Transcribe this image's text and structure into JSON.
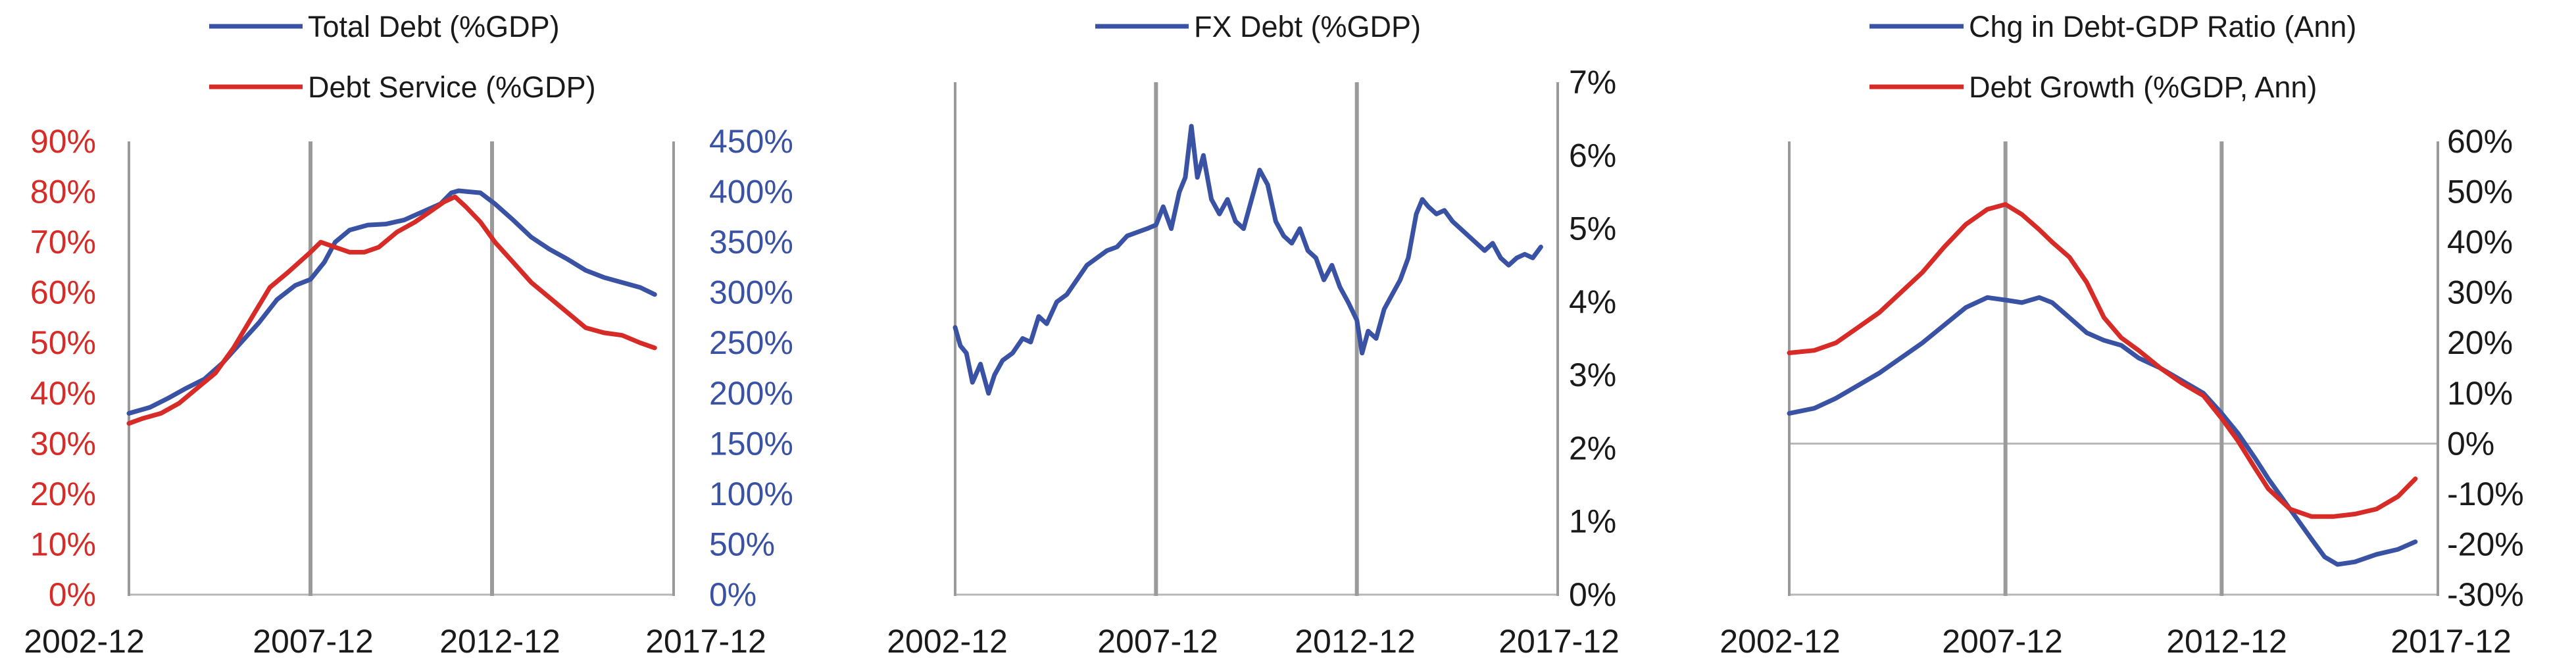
{
  "colors": {
    "blue": "#3a52a3",
    "red": "#d62b27",
    "axis": "#b7b7b7",
    "grid": "#9a9a9a",
    "text": "#1a1a1a"
  },
  "chart_data": [
    {
      "type": "line",
      "legend": [
        "Total Debt (%GDP)",
        "Debt Service (%GDP)"
      ],
      "legend_placement": "top",
      "x_ticks": [
        "2002-12",
        "2007-12",
        "2012-12",
        "2017-12"
      ],
      "xlim": [
        2002.92,
        2017.92
      ],
      "left_axis": {
        "ylim": [
          0,
          0.9
        ],
        "ticks": [
          "0%",
          "10%",
          "20%",
          "30%",
          "40%",
          "50%",
          "60%",
          "70%",
          "80%",
          "90%"
        ],
        "color": "#d62b27"
      },
      "right_axis": {
        "ylim": [
          0,
          4.5
        ],
        "ticks": [
          "0%",
          "50%",
          "100%",
          "150%",
          "200%",
          "250%",
          "300%",
          "350%",
          "400%",
          "450%"
        ],
        "color": "#3a52a3"
      },
      "vlines": [
        2002.92,
        2007.92,
        2012.92,
        2017.92
      ],
      "series": [
        {
          "name": "Total Debt (%GDP)",
          "axis": "right",
          "color": "#3a52a3",
          "points": [
            [
              2002.92,
              1.8
            ],
            [
              2003.5,
              1.86
            ],
            [
              2004,
              1.95
            ],
            [
              2004.5,
              2.05
            ],
            [
              2005,
              2.14
            ],
            [
              2005.5,
              2.3
            ],
            [
              2006,
              2.5
            ],
            [
              2006.5,
              2.7
            ],
            [
              2007,
              2.93
            ],
            [
              2007.5,
              3.07
            ],
            [
              2007.92,
              3.13
            ],
            [
              2008.3,
              3.3
            ],
            [
              2008.6,
              3.5
            ],
            [
              2009,
              3.62
            ],
            [
              2009.5,
              3.67
            ],
            [
              2010,
              3.68
            ],
            [
              2010.5,
              3.72
            ],
            [
              2011,
              3.8
            ],
            [
              2011.5,
              3.88
            ],
            [
              2011.8,
              3.99
            ],
            [
              2012,
              4.01
            ],
            [
              2012.3,
              4.0
            ],
            [
              2012.6,
              3.99
            ],
            [
              2013,
              3.88
            ],
            [
              2013.5,
              3.72
            ],
            [
              2014,
              3.55
            ],
            [
              2014.5,
              3.43
            ],
            [
              2015,
              3.33
            ],
            [
              2015.5,
              3.22
            ],
            [
              2016,
              3.15
            ],
            [
              2016.5,
              3.1
            ],
            [
              2017,
              3.05
            ],
            [
              2017.4,
              2.98
            ]
          ]
        },
        {
          "name": "Debt Service (%GDP)",
          "axis": "left",
          "color": "#d62b27",
          "points": [
            [
              2002.92,
              0.34
            ],
            [
              2003.3,
              0.35
            ],
            [
              2003.8,
              0.36
            ],
            [
              2004.3,
              0.38
            ],
            [
              2004.8,
              0.41
            ],
            [
              2005.3,
              0.44
            ],
            [
              2005.8,
              0.49
            ],
            [
              2006.3,
              0.55
            ],
            [
              2006.8,
              0.61
            ],
            [
              2007.3,
              0.64
            ],
            [
              2007.92,
              0.68
            ],
            [
              2008.2,
              0.7
            ],
            [
              2008.6,
              0.69
            ],
            [
              2009,
              0.68
            ],
            [
              2009.4,
              0.68
            ],
            [
              2009.8,
              0.69
            ],
            [
              2010.3,
              0.72
            ],
            [
              2010.8,
              0.74
            ],
            [
              2011.2,
              0.76
            ],
            [
              2011.6,
              0.78
            ],
            [
              2011.9,
              0.79
            ],
            [
              2012.2,
              0.77
            ],
            [
              2012.6,
              0.74
            ],
            [
              2013,
              0.7
            ],
            [
              2013.5,
              0.66
            ],
            [
              2014,
              0.62
            ],
            [
              2014.5,
              0.59
            ],
            [
              2015,
              0.56
            ],
            [
              2015.5,
              0.53
            ],
            [
              2016,
              0.52
            ],
            [
              2016.5,
              0.515
            ],
            [
              2017,
              0.5
            ],
            [
              2017.4,
              0.49
            ]
          ]
        }
      ]
    },
    {
      "type": "line",
      "legend": [
        "FX Debt (%GDP)"
      ],
      "legend_placement": "top",
      "x_ticks": [
        "2002-12",
        "2007-12",
        "2012-12",
        "2017-12"
      ],
      "xlim": [
        2002.92,
        2017.92
      ],
      "right_axis": {
        "ylim": [
          0,
          0.07
        ],
        "ticks": [
          "0%",
          "1%",
          "2%",
          "3%",
          "4%",
          "5%",
          "6%",
          "7%"
        ],
        "color": "#1a1a1a"
      },
      "vlines": [
        2002.92,
        2007.92,
        2012.92,
        2017.92
      ],
      "series": [
        {
          "name": "FX Debt (%GDP)",
          "axis": "right",
          "color": "#3a52a3",
          "points": [
            [
              2002.92,
              0.0365
            ],
            [
              2003.05,
              0.034
            ],
            [
              2003.2,
              0.033
            ],
            [
              2003.35,
              0.029
            ],
            [
              2003.55,
              0.0315
            ],
            [
              2003.75,
              0.0275
            ],
            [
              2003.9,
              0.03
            ],
            [
              2004.1,
              0.032
            ],
            [
              2004.35,
              0.033
            ],
            [
              2004.6,
              0.035
            ],
            [
              2004.8,
              0.0345
            ],
            [
              2005.0,
              0.038
            ],
            [
              2005.2,
              0.037
            ],
            [
              2005.45,
              0.04
            ],
            [
              2005.7,
              0.041
            ],
            [
              2005.95,
              0.043
            ],
            [
              2006.2,
              0.045
            ],
            [
              2006.45,
              0.046
            ],
            [
              2006.7,
              0.047
            ],
            [
              2006.95,
              0.0475
            ],
            [
              2007.2,
              0.049
            ],
            [
              2007.45,
              0.0495
            ],
            [
              2007.7,
              0.05
            ],
            [
              2007.92,
              0.0505
            ],
            [
              2008.1,
              0.053
            ],
            [
              2008.3,
              0.05
            ],
            [
              2008.5,
              0.055
            ],
            [
              2008.65,
              0.057
            ],
            [
              2008.8,
              0.064
            ],
            [
              2008.95,
              0.057
            ],
            [
              2009.1,
              0.06
            ],
            [
              2009.3,
              0.054
            ],
            [
              2009.5,
              0.052
            ],
            [
              2009.7,
              0.054
            ],
            [
              2009.9,
              0.051
            ],
            [
              2010.1,
              0.05
            ],
            [
              2010.3,
              0.054
            ],
            [
              2010.5,
              0.058
            ],
            [
              2010.7,
              0.056
            ],
            [
              2010.9,
              0.051
            ],
            [
              2011.1,
              0.049
            ],
            [
              2011.3,
              0.048
            ],
            [
              2011.5,
              0.05
            ],
            [
              2011.7,
              0.047
            ],
            [
              2011.9,
              0.046
            ],
            [
              2012.1,
              0.043
            ],
            [
              2012.3,
              0.045
            ],
            [
              2012.5,
              0.042
            ],
            [
              2012.7,
              0.04
            ],
            [
              2012.92,
              0.0375
            ],
            [
              2013.05,
              0.033
            ],
            [
              2013.2,
              0.036
            ],
            [
              2013.4,
              0.035
            ],
            [
              2013.6,
              0.039
            ],
            [
              2013.8,
              0.041
            ],
            [
              2014.0,
              0.043
            ],
            [
              2014.2,
              0.046
            ],
            [
              2014.4,
              0.052
            ],
            [
              2014.55,
              0.054
            ],
            [
              2014.7,
              0.053
            ],
            [
              2014.9,
              0.052
            ],
            [
              2015.1,
              0.0525
            ],
            [
              2015.3,
              0.051
            ],
            [
              2015.5,
              0.05
            ],
            [
              2015.7,
              0.049
            ],
            [
              2015.9,
              0.048
            ],
            [
              2016.1,
              0.047
            ],
            [
              2016.3,
              0.048
            ],
            [
              2016.5,
              0.046
            ],
            [
              2016.7,
              0.045
            ],
            [
              2016.9,
              0.046
            ],
            [
              2017.1,
              0.0465
            ],
            [
              2017.3,
              0.046
            ],
            [
              2017.5,
              0.0475
            ]
          ]
        }
      ]
    },
    {
      "type": "line",
      "legend": [
        "Chg in Debt-GDP Ratio (Ann)",
        "Debt Growth (%GDP, Ann)"
      ],
      "legend_placement": "top",
      "x_ticks": [
        "2002-12",
        "2007-12",
        "2012-12",
        "2017-12"
      ],
      "xlim": [
        2002.92,
        2017.92
      ],
      "right_axis": {
        "ylim": [
          -0.3,
          0.6
        ],
        "ticks": [
          "-30%",
          "-20%",
          "-10%",
          "0%",
          "10%",
          "20%",
          "30%",
          "40%",
          "50%",
          "60%"
        ],
        "color": "#1a1a1a"
      },
      "zero_line": true,
      "vlines": [
        2002.92,
        2007.92,
        2012.92,
        2017.92
      ],
      "series": [
        {
          "name": "Chg in Debt-GDP Ratio (Ann)",
          "axis": "right",
          "color": "#3a52a3",
          "points": [
            [
              2002.92,
              0.06
            ],
            [
              2003.5,
              0.07
            ],
            [
              2004,
              0.09
            ],
            [
              2004.5,
              0.115
            ],
            [
              2005,
              0.14
            ],
            [
              2005.5,
              0.17
            ],
            [
              2006,
              0.2
            ],
            [
              2006.5,
              0.235
            ],
            [
              2007,
              0.27
            ],
            [
              2007.5,
              0.29
            ],
            [
              2007.92,
              0.285
            ],
            [
              2008.3,
              0.28
            ],
            [
              2008.7,
              0.29
            ],
            [
              2009,
              0.28
            ],
            [
              2009.4,
              0.25
            ],
            [
              2009.8,
              0.22
            ],
            [
              2010.2,
              0.205
            ],
            [
              2010.6,
              0.195
            ],
            [
              2011,
              0.17
            ],
            [
              2011.5,
              0.15
            ],
            [
              2012,
              0.125
            ],
            [
              2012.5,
              0.1
            ],
            [
              2012.92,
              0.06
            ],
            [
              2013.3,
              0.02
            ],
            [
              2013.7,
              -0.03
            ],
            [
              2014,
              -0.07
            ],
            [
              2014.5,
              -0.13
            ],
            [
              2015,
              -0.19
            ],
            [
              2015.3,
              -0.225
            ],
            [
              2015.6,
              -0.24
            ],
            [
              2016,
              -0.235
            ],
            [
              2016.5,
              -0.22
            ],
            [
              2017,
              -0.21
            ],
            [
              2017.4,
              -0.195
            ]
          ]
        },
        {
          "name": "Debt Growth (%GDP, Ann)",
          "axis": "right",
          "color": "#d62b27",
          "points": [
            [
              2002.92,
              0.18
            ],
            [
              2003.5,
              0.185
            ],
            [
              2004,
              0.2
            ],
            [
              2004.5,
              0.23
            ],
            [
              2005,
              0.26
            ],
            [
              2005.5,
              0.3
            ],
            [
              2006,
              0.34
            ],
            [
              2006.5,
              0.39
            ],
            [
              2007,
              0.435
            ],
            [
              2007.5,
              0.465
            ],
            [
              2007.92,
              0.475
            ],
            [
              2008.3,
              0.455
            ],
            [
              2008.7,
              0.425
            ],
            [
              2009,
              0.4
            ],
            [
              2009.4,
              0.37
            ],
            [
              2009.8,
              0.32
            ],
            [
              2010.2,
              0.25
            ],
            [
              2010.6,
              0.21
            ],
            [
              2011,
              0.185
            ],
            [
              2011.5,
              0.15
            ],
            [
              2012,
              0.12
            ],
            [
              2012.5,
              0.095
            ],
            [
              2012.92,
              0.05
            ],
            [
              2013.3,
              0.005
            ],
            [
              2013.7,
              -0.05
            ],
            [
              2014,
              -0.09
            ],
            [
              2014.5,
              -0.13
            ],
            [
              2015,
              -0.145
            ],
            [
              2015.5,
              -0.145
            ],
            [
              2016,
              -0.14
            ],
            [
              2016.5,
              -0.13
            ],
            [
              2017,
              -0.105
            ],
            [
              2017.4,
              -0.07
            ]
          ]
        }
      ]
    }
  ]
}
